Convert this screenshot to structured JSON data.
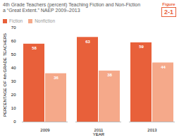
{
  "chart_data": {
    "type": "bar",
    "title": "4th Grade Teachers (percent) Teaching Fiction and Non-Fiction",
    "subtitle": "a “Great Extent.” NAEP 2009–2013",
    "annotations": [
      "Figure",
      "2-1"
    ],
    "x_label": "YEAR",
    "y_label": "PERCENTAGE OF 4th GRADE TEACHERS",
    "categories": [
      "2009",
      "2011",
      "2013"
    ],
    "series": [
      {
        "name": "Fiction",
        "color": "#e8603a",
        "values": [
          58,
          63,
          59
        ]
      },
      {
        "name": "Nonfiction",
        "color": "#f5a98a",
        "values": [
          36,
          38,
          44
        ]
      }
    ],
    "ylim": [
      0,
      70
    ],
    "yticks": [
      0,
      10,
      20,
      30,
      40,
      50,
      60,
      70
    ],
    "grid": false,
    "legend": "upper left",
    "data_labels": true
  }
}
